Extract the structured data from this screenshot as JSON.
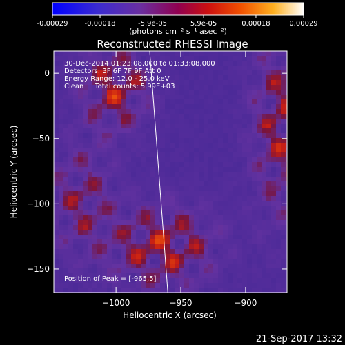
{
  "chart_data": {
    "type": "heatmap",
    "title": "Reconstructed RHESSI Image",
    "xlabel": "Heliocentric X (arcsec)",
    "ylabel": "Heliocentric Y (arcsec)",
    "xlim": [
      -1048,
      -868
    ],
    "ylim": [
      -168,
      17
    ],
    "x_ticks": [
      -1000,
      -950,
      -900
    ],
    "y_ticks": [
      0,
      -50,
      -100,
      -150
    ],
    "colorbar": {
      "min": -0.00029,
      "max": 0.00029,
      "tick_values": [
        -0.00029,
        -0.00018,
        -5.9e-05,
        5.9e-05,
        0.00018,
        0.00029
      ],
      "tick_labels": [
        "-0.00029",
        "-0.00018",
        "-5.9e-05",
        "5.9e-05",
        "0.00018",
        "0.00029"
      ],
      "units": "(photons cm⁻² s⁻¹ asec⁻²)"
    },
    "annotations": [
      "30-Dec-2014 01:23:08.000 to 01:33:08.000",
      "Detectors: 3F 6F 7F 9F Att 0",
      "Energy Range: 12.0 - 25.0 keV",
      "Clean     Total counts: 5.99E+03"
    ],
    "peak_label": "Position of Peak = [-965,5]",
    "limb_line": {
      "x": [
        -974,
        -960
      ],
      "y": [
        17,
        -168
      ]
    },
    "colors": {
      "background": "#000000",
      "low": "#3b1a8c",
      "mid": "#c8201a",
      "high": "#fff8b0"
    }
  },
  "footer": {
    "timestamp": "21-Sep-2017 13:32"
  }
}
